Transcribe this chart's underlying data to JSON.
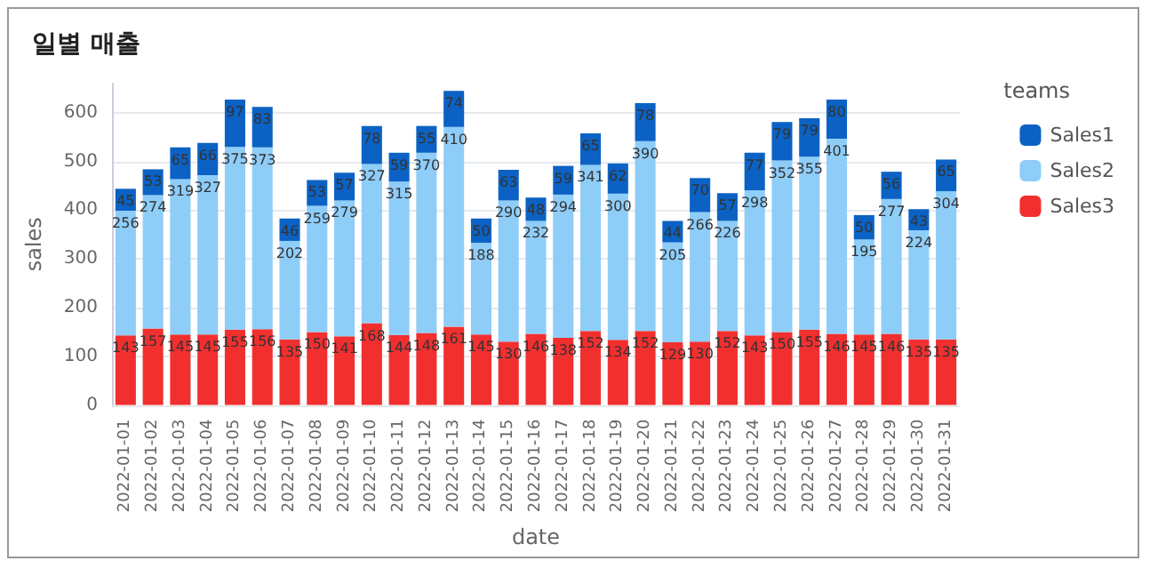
{
  "chart_data": {
    "type": "bar",
    "title": "일별 매출",
    "xlabel": "date",
    "ylabel": "sales",
    "legend_title": "teams",
    "categories": [
      "2022-01-01",
      "2022-01-02",
      "2022-01-03",
      "2022-01-04",
      "2022-01-05",
      "2022-01-06",
      "2022-01-07",
      "2022-01-08",
      "2022-01-09",
      "2022-01-10",
      "2022-01-11",
      "2022-01-12",
      "2022-01-13",
      "2022-01-14",
      "2022-01-15",
      "2022-01-16",
      "2022-01-17",
      "2022-01-18",
      "2022-01-19",
      "2022-01-20",
      "2022-01-21",
      "2022-01-22",
      "2022-01-23",
      "2022-01-24",
      "2022-01-25",
      "2022-01-26",
      "2022-01-27",
      "2022-01-28",
      "2022-01-29",
      "2022-01-30",
      "2022-01-31"
    ],
    "series": [
      {
        "name": "Sales3",
        "color": "#f22f2f",
        "values": [
          143,
          157,
          145,
          145,
          155,
          156,
          135,
          150,
          141,
          168,
          144,
          148,
          161,
          145,
          130,
          146,
          138,
          152,
          134,
          152,
          129,
          130,
          152,
          143,
          150,
          155,
          146,
          145,
          146,
          135,
          135
        ]
      },
      {
        "name": "Sales2",
        "color": "#8ecdf8",
        "values": [
          256,
          274,
          319,
          327,
          375,
          373,
          202,
          259,
          279,
          327,
          315,
          370,
          410,
          188,
          290,
          232,
          294,
          341,
          300,
          390,
          205,
          266,
          226,
          298,
          352,
          355,
          401,
          195,
          277,
          224,
          304
        ]
      },
      {
        "name": "Sales1",
        "color": "#0b62c4",
        "values": [
          45,
          53,
          65,
          66,
          97,
          83,
          46,
          53,
          57,
          78,
          59,
          55,
          74,
          50,
          63,
          48,
          59,
          65,
          62,
          78,
          44,
          70,
          57,
          77,
          79,
          79,
          80,
          50,
          56,
          43,
          65
        ]
      }
    ],
    "stacked": true,
    "data_labels": true,
    "ylim": [
      0,
      660
    ],
    "yticks": [
      0,
      100,
      200,
      300,
      400,
      500,
      600
    ],
    "grid": "y",
    "legend": "right"
  }
}
